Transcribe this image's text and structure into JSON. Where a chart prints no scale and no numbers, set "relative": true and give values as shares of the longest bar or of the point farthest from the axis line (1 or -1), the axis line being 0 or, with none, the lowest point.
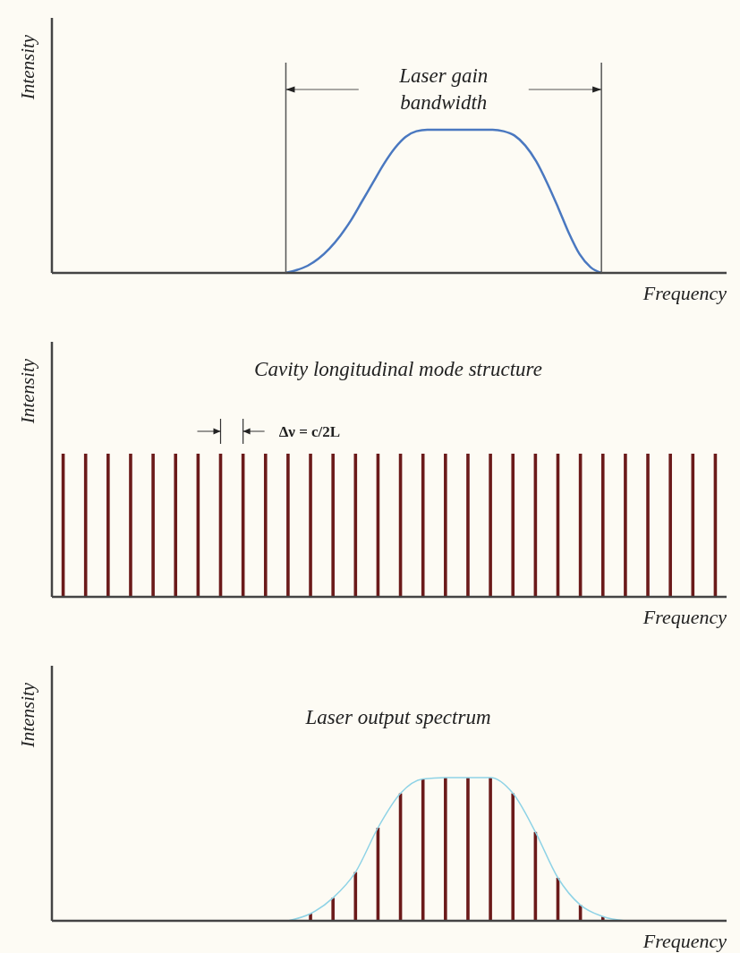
{
  "chart_data": [
    {
      "type": "line",
      "relative": true,
      "xlabel": "Frequency",
      "ylabel": "Intensity",
      "annotations": [
        "Laser gain bandwidth"
      ],
      "categories": [
        null,
        null,
        null,
        null,
        null,
        null,
        null,
        null,
        null,
        null,
        null,
        null,
        null,
        null,
        null,
        null,
        null,
        null,
        null,
        null,
        null,
        null,
        null,
        null,
        null,
        null,
        null,
        null,
        null,
        null,
        null,
        null,
        null,
        null,
        null,
        null,
        null,
        null,
        null,
        null,
        null,
        null,
        null,
        null,
        null,
        null,
        null,
        null,
        null,
        null,
        null,
        null,
        null,
        null,
        null,
        null,
        null,
        null,
        null,
        null,
        null,
        null
      ],
      "series": [
        {
          "color": "#4a78c0",
          "values": [
            null,
            null,
            null,
            null,
            null,
            null,
            null,
            null,
            null,
            null,
            null,
            null,
            null,
            null,
            null,
            null,
            null,
            null,
            null,
            null,
            null,
            0,
            0.02,
            0.05,
            0.1,
            0.17,
            0.26,
            0.37,
            0.5,
            0.63,
            0.76,
            0.87,
            0.95,
            0.99,
            1,
            1,
            1,
            1,
            1,
            1,
            1,
            0.99,
            0.96,
            0.89,
            0.78,
            0.63,
            0.46,
            0.28,
            0.13,
            0.04,
            0,
            null,
            null,
            null,
            null,
            null,
            null,
            null,
            null,
            null,
            null,
            null
          ]
        }
      ]
    },
    {
      "type": "bar",
      "relative": true,
      "title": "Cavity longitudinal mode structure",
      "xlabel": "Frequency",
      "ylabel": "Intensity",
      "annotations": [
        "Δν = c/2L"
      ],
      "categories": [
        null,
        null,
        null,
        null,
        null,
        null,
        null,
        null,
        null,
        null,
        null,
        null,
        null,
        null,
        null,
        null,
        null,
        null,
        null,
        null,
        null,
        null,
        null,
        null,
        null,
        null,
        null,
        null,
        null,
        null
      ],
      "series": [
        {
          "color": "#6b1a1a",
          "values": [
            1,
            1,
            1,
            1,
            1,
            1,
            1,
            1,
            1,
            1,
            1,
            1,
            1,
            1,
            1,
            1,
            1,
            1,
            1,
            1,
            1,
            1,
            1,
            1,
            1,
            1,
            1,
            1,
            1,
            1
          ]
        }
      ]
    },
    {
      "type": "bar",
      "relative": true,
      "title": "Laser output spectrum",
      "xlabel": "Frequency",
      "ylabel": "Intensity",
      "categories": [
        null,
        null,
        null,
        null,
        null,
        null,
        null,
        null,
        null,
        null,
        null,
        null,
        null,
        null,
        null,
        null,
        null,
        null,
        null,
        null,
        null,
        null,
        null,
        null,
        null,
        null,
        null,
        null,
        null,
        null
      ],
      "series": [
        {
          "color": "#6b1a1a",
          "values": [
            null,
            null,
            null,
            null,
            null,
            null,
            null,
            null,
            null,
            null,
            null,
            0.05,
            0.16,
            0.34,
            0.65,
            0.89,
            0.99,
            1,
            1,
            1,
            0.89,
            0.62,
            0.3,
            0.11,
            0.03,
            null,
            null,
            null,
            null,
            null
          ]
        },
        {
          "type": "line",
          "color": "#8fd3e6",
          "values": [
            null,
            null,
            null,
            null,
            null,
            null,
            null,
            null,
            null,
            null,
            0,
            0.05,
            0.16,
            0.34,
            0.65,
            0.89,
            0.99,
            1,
            1,
            1,
            0.89,
            0.62,
            0.3,
            0.11,
            0.03,
            0,
            null,
            null,
            null,
            null
          ]
        }
      ]
    }
  ]
}
